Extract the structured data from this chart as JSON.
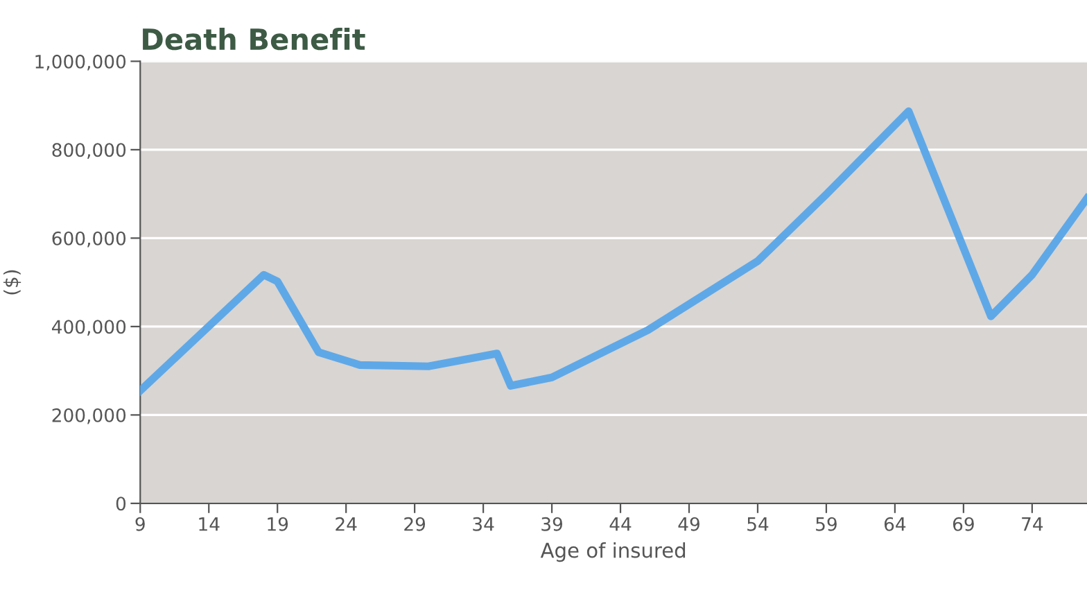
{
  "chart_data": {
    "type": "line",
    "title": "Death Benefit",
    "xlabel": "Age of insured",
    "ylabel": "($)",
    "x": [
      9,
      18,
      19,
      22,
      25,
      30,
      35,
      36,
      39,
      46,
      54,
      59,
      65,
      71,
      74,
      78
    ],
    "series": [
      {
        "color": "#5fa8e8",
        "values": [
          255000,
          517000,
          502000,
          342000,
          313000,
          310000,
          339000,
          266000,
          285000,
          392000,
          548000,
          699000,
          887000,
          423000,
          517000,
          690000
        ]
      }
    ],
    "xlim": [
      9,
      78
    ],
    "xticks": [
      9,
      14,
      19,
      24,
      29,
      34,
      39,
      44,
      49,
      54,
      59,
      64,
      69,
      74
    ],
    "ylim": [
      0,
      1000000
    ],
    "yticks": [
      {
        "value": 0,
        "label": "0"
      },
      {
        "value": 200000,
        "label": "200,000"
      },
      {
        "value": 400000,
        "label": "400,000"
      },
      {
        "value": 600000,
        "label": "600,000"
      },
      {
        "value": 800000,
        "label": "800,000"
      },
      {
        "value": 1000000,
        "label": "1,000,000"
      }
    ],
    "grid": "y",
    "marker": "none",
    "line_style": "solid"
  }
}
